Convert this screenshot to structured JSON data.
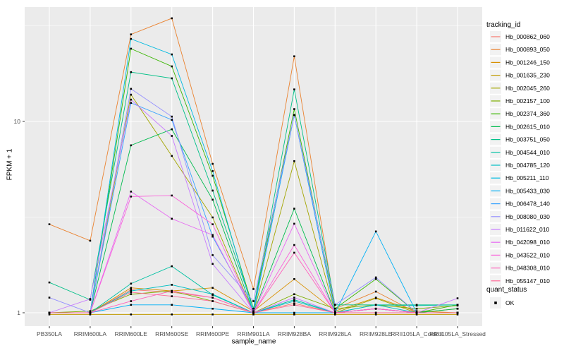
{
  "chart_data": {
    "type": "line",
    "title": "",
    "xlabel": "sample_name",
    "ylabel": "FPKM + 1",
    "y_scale": "log10",
    "y_ticks": [
      1,
      10
    ],
    "y_minor_gridlines": [
      3.1623,
      31.623
    ],
    "ylim": [
      0.85,
      39.7
    ],
    "grid": "on",
    "legend_position": "right",
    "legend_title": "tracking_id",
    "quant_legend": {
      "title": "quant_status",
      "items": [
        {
          "label": "OK",
          "symbol": "black-square"
        }
      ]
    },
    "point_symbol": "small-black-square",
    "categories": [
      "PB350LA",
      "RRIM600LA",
      "RRIM600LE",
      "RRIM600SE",
      "RRIM600PE",
      "RRIM901LA",
      "RRIM928BA",
      "RRIM928LA",
      "RRIM928LE",
      "RRII105LA_Control",
      "RRII105LA_Stressed"
    ],
    "series": [
      {
        "name": "Hb_000862_060",
        "color": "#F8766D",
        "values": [
          1.0,
          1.0,
          1.32,
          1.28,
          1.2,
          1.0,
          1.12,
          1.0,
          1.05,
          1.0,
          1.0
        ]
      },
      {
        "name": "Hb_000893_050",
        "color": "#EA8331",
        "values": [
          2.9,
          2.38,
          28.5,
          34.6,
          6.0,
          1.33,
          21.9,
          1.05,
          1.29,
          1.0,
          1.05
        ]
      },
      {
        "name": "Hb_001246_150",
        "color": "#D89000",
        "values": [
          1.0,
          1.0,
          1.35,
          1.3,
          1.35,
          1.02,
          1.5,
          1.02,
          1.2,
          1.02,
          1.0
        ]
      },
      {
        "name": "Hb_001635_230",
        "color": "#C09B00",
        "values": [
          0.98,
          0.98,
          0.98,
          0.98,
          0.98,
          0.98,
          0.98,
          0.98,
          0.98,
          0.98,
          0.98
        ]
      },
      {
        "name": "Hb_002045_260",
        "color": "#A3A500",
        "values": [
          1.0,
          1.0,
          13.8,
          6.6,
          3.15,
          1.0,
          6.2,
          1.0,
          1.19,
          1.0,
          1.0
        ]
      },
      {
        "name": "Hb_002157_100",
        "color": "#7CAE00",
        "values": [
          1.0,
          1.02,
          1.25,
          1.3,
          1.15,
          1.0,
          1.25,
          1.05,
          1.1,
          1.05,
          1.09
        ]
      },
      {
        "name": "Hb_002374_360",
        "color": "#39B600",
        "values": [
          1.0,
          1.0,
          24.0,
          19.4,
          5.2,
          1.05,
          11.6,
          1.05,
          1.5,
          1.0,
          1.1
        ]
      },
      {
        "name": "Hb_002615_010",
        "color": "#00BB4E",
        "values": [
          1.0,
          1.0,
          7.5,
          9.1,
          3.9,
          1.0,
          3.5,
          1.0,
          1.05,
          1.0,
          1.05
        ]
      },
      {
        "name": "Hb_003751_050",
        "color": "#00C087",
        "values": [
          1.44,
          1.17,
          18.1,
          16.8,
          4.35,
          1.05,
          14.7,
          1.1,
          1.1,
          1.1,
          1.1
        ]
      },
      {
        "name": "Hb_004544_010",
        "color": "#00C1A3",
        "values": [
          1.0,
          1.0,
          1.42,
          1.75,
          1.24,
          1.0,
          1.17,
          1.0,
          1.1,
          1.09,
          1.1
        ]
      },
      {
        "name": "Hb_004785_120",
        "color": "#00BFC4",
        "values": [
          1.0,
          1.0,
          1.3,
          1.4,
          1.25,
          1.0,
          1.15,
          1.0,
          1.1,
          1.0,
          1.0
        ]
      },
      {
        "name": "Hb_005211_110",
        "color": "#00BAE0",
        "values": [
          1.0,
          1.0,
          27.0,
          22.4,
          5.5,
          1.0,
          10.8,
          1.0,
          1.0,
          1.0,
          1.0
        ]
      },
      {
        "name": "Hb_005433_030",
        "color": "#00B0F6",
        "values": [
          1.0,
          1.0,
          1.1,
          1.1,
          1.05,
          1.0,
          1.0,
          1.0,
          2.66,
          1.0,
          1.0
        ]
      },
      {
        "name": "Hb_006478_140",
        "color": "#35A2FF",
        "values": [
          1.0,
          1.0,
          12.5,
          10.2,
          2.5,
          1.02,
          10.8,
          1.0,
          1.05,
          1.0,
          1.0
        ]
      },
      {
        "name": "Hb_008080_030",
        "color": "#9590FF",
        "values": [
          1.2,
          1.0,
          14.8,
          10.6,
          2.0,
          1.15,
          10.8,
          1.1,
          1.53,
          1.0,
          1.0
        ]
      },
      {
        "name": "Hb_011622_010",
        "color": "#C77CFF",
        "values": [
          1.0,
          1.18,
          13.0,
          8.4,
          1.8,
          1.0,
          1.2,
          1.0,
          1.05,
          1.0,
          1.19
        ]
      },
      {
        "name": "Hb_042098_010",
        "color": "#E76BF3",
        "values": [
          1.0,
          1.0,
          4.3,
          3.1,
          2.55,
          1.0,
          2.92,
          1.0,
          1.05,
          1.0,
          1.0
        ]
      },
      {
        "name": "Hb_043522_010",
        "color": "#FA62DB",
        "values": [
          1.0,
          1.0,
          4.05,
          4.1,
          2.9,
          1.0,
          2.26,
          1.0,
          1.0,
          1.0,
          1.0
        ]
      },
      {
        "name": "Hb_048308_010",
        "color": "#FF62BC",
        "values": [
          1.0,
          1.0,
          1.15,
          1.3,
          1.2,
          1.0,
          2.06,
          1.0,
          1.05,
          1.0,
          1.0
        ]
      },
      {
        "name": "Hb_055147_010",
        "color": "#FF6A98",
        "values": [
          1.0,
          1.0,
          1.28,
          1.22,
          1.15,
          1.0,
          1.1,
          1.0,
          1.0,
          1.0,
          1.0
        ]
      }
    ],
    "style": {
      "panel_bg": "#EBEBEB",
      "grid_color": "#FFFFFF",
      "axis_text_color": "#4D4D4D",
      "tick_color": "#333333",
      "point_color": "#000000",
      "legend_key_bg": "#F2F2F2"
    }
  }
}
